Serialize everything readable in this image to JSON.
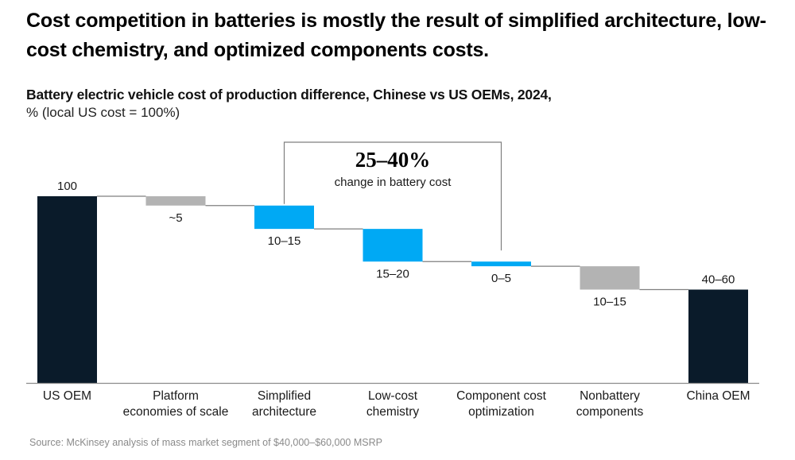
{
  "headline": "Cost competition in batteries is mostly the result of simplified architecture, low-cost chemistry, and optimized components costs.",
  "source": "Source: McKinsey analysis of mass market segment of $40,000–$60,000 MSRP",
  "colors": {
    "total": "#0a1b2a",
    "battery": "#00a9f4",
    "other": "#b3b3b3",
    "connector": "#7f7f7f",
    "axis": "#8c8c8c",
    "bracket": "#7f7f7f"
  },
  "chart_data": {
    "type": "bar",
    "subtype": "waterfall",
    "title": "Battery electric vehicle cost of production difference, Chinese vs US OEMs, 2024,",
    "ylabel": "% (local US cost = 100%)",
    "xlabel": "",
    "ylim": [
      0,
      100
    ],
    "grid": false,
    "categories": [
      [
        "US OEM"
      ],
      [
        "Platform",
        "economies of scale"
      ],
      [
        "Simplified",
        "architecture"
      ],
      [
        "Low-cost",
        "chemistry"
      ],
      [
        "Component cost",
        "optimization"
      ],
      [
        "Nonbattery",
        "components"
      ],
      [
        "China OEM"
      ]
    ],
    "bars": [
      {
        "kind": "total",
        "label": "100",
        "start": 0,
        "end": 100,
        "color_key": "total"
      },
      {
        "kind": "decrease",
        "label": "~5",
        "start": 100,
        "end": 95,
        "color_key": "other"
      },
      {
        "kind": "decrease",
        "label": "10–15",
        "start": 95,
        "end": 82.5,
        "color_key": "battery"
      },
      {
        "kind": "decrease",
        "label": "15–20",
        "start": 82.5,
        "end": 65,
        "color_key": "battery"
      },
      {
        "kind": "decrease",
        "label": "0–5",
        "start": 65,
        "end": 62.5,
        "color_key": "battery"
      },
      {
        "kind": "decrease",
        "label": "10–15",
        "start": 62.5,
        "end": 50,
        "color_key": "other"
      },
      {
        "kind": "total",
        "label": "40–60",
        "start": 0,
        "end": 50,
        "color_key": "total"
      }
    ],
    "annotation": {
      "big": "25–40%",
      "small": "change in battery cost",
      "spans": [
        2,
        4
      ]
    }
  }
}
